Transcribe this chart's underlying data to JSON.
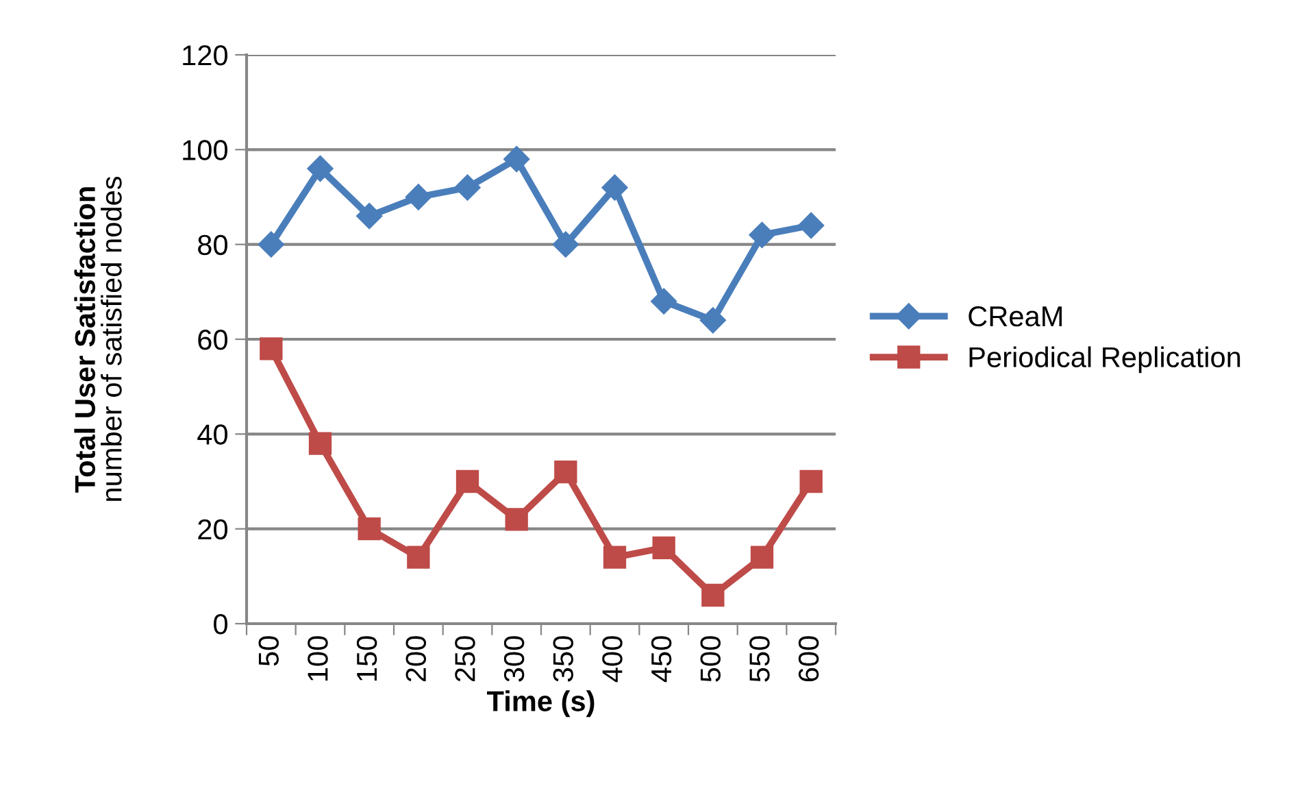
{
  "chart_data": {
    "type": "line",
    "xlabel": "Time (s)",
    "ylabel": "Total User Satisfaction\nnumber of satisfied nodes",
    "categories": [
      "50",
      "100",
      "150",
      "200",
      "250",
      "300",
      "350",
      "400",
      "450",
      "500",
      "550",
      "600"
    ],
    "series": [
      {
        "name": "CReaM",
        "color": "#4a7ebb",
        "marker": "diamond",
        "values": [
          80,
          96,
          86,
          90,
          92,
          98,
          80,
          92,
          68,
          64,
          82,
          84
        ]
      },
      {
        "name": "Periodical Replication",
        "color": "#be4b48",
        "marker": "square",
        "values": [
          58,
          38,
          20,
          14,
          30,
          22,
          32,
          14,
          16,
          6,
          14,
          30
        ]
      }
    ],
    "ylim": [
      0,
      120
    ],
    "yticks": [
      0,
      20,
      40,
      60,
      80,
      100,
      120
    ],
    "grid": "y",
    "legend": "right",
    "line_style": "solid"
  }
}
